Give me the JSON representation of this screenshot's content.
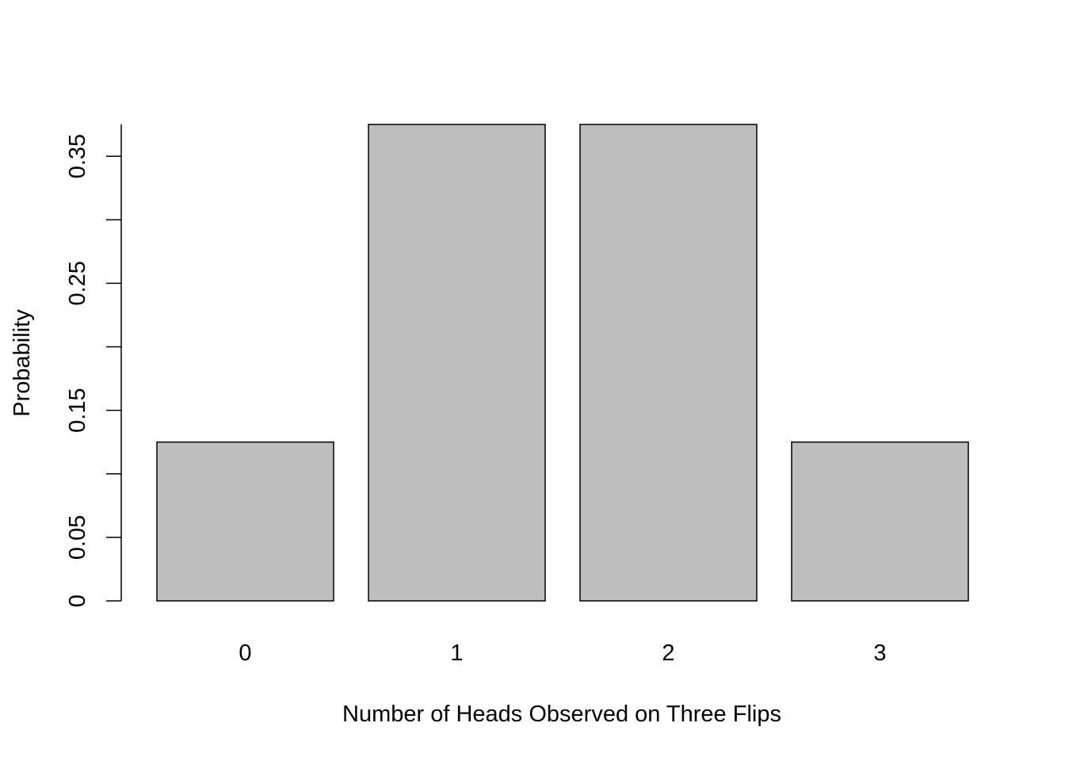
{
  "chart_data": {
    "type": "bar",
    "title": "",
    "xlabel": "Number of Heads Observed on Three Flips",
    "ylabel": "Probability",
    "categories": [
      "0",
      "1",
      "2",
      "3"
    ],
    "values": [
      0.125,
      0.375,
      0.375,
      0.125
    ],
    "ylim": [
      0,
      0.375
    ],
    "y_ticks": [
      0,
      0.05,
      0.1,
      0.15,
      0.2,
      0.25,
      0.3,
      0.35
    ],
    "y_tick_labels": [
      "0",
      "0.05",
      "",
      "0.15",
      "",
      "0.25",
      "",
      "0.35"
    ],
    "grid": false,
    "legend": "none",
    "colors": {
      "bar_fill": "#bebebe",
      "bar_stroke": "#000000",
      "axis": "#000000"
    }
  }
}
